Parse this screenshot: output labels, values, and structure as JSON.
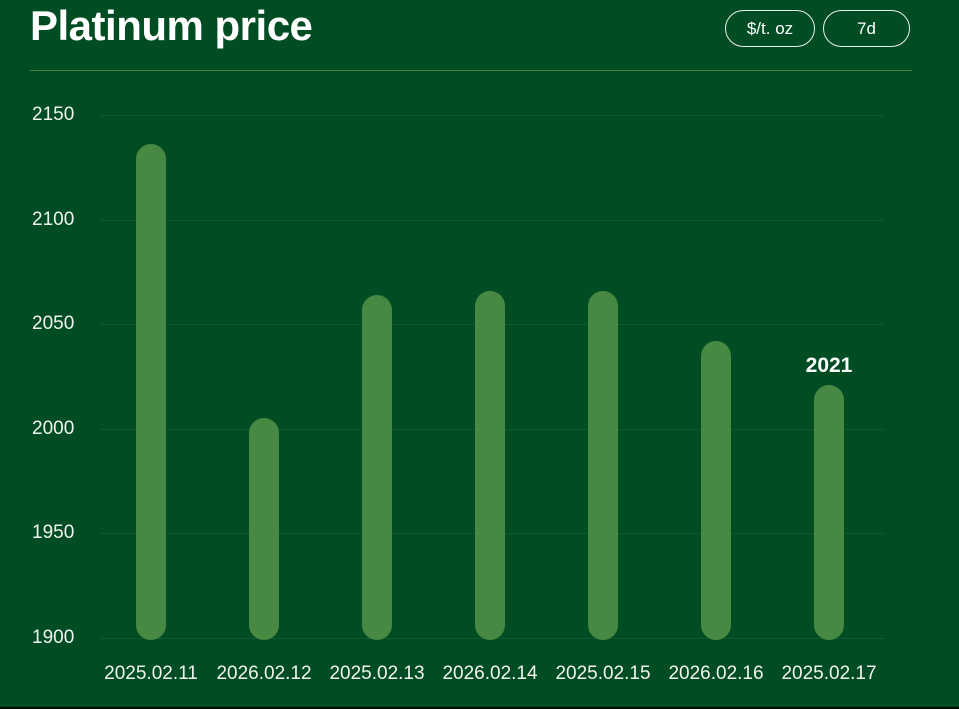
{
  "header": {
    "title": "Platinum price",
    "unit_button": "$/t. oz",
    "period_button": "7d"
  },
  "chart_data": {
    "type": "bar",
    "title": "Platinum price",
    "unit": "$/t. oz",
    "period": "7d",
    "categories": [
      "2025.02.11",
      "2026.02.12",
      "2025.02.13",
      "2026.02.14",
      "2025.02.15",
      "2026.02.16",
      "2025.02.17"
    ],
    "values": [
      2136,
      2005,
      2064,
      2066,
      2066,
      2042,
      2021
    ],
    "y_ticks": [
      2150,
      2100,
      2050,
      2000,
      1950,
      1900
    ],
    "ylim": [
      1900,
      2150
    ],
    "xlabel": "",
    "ylabel": "",
    "grid": "horizontal",
    "legend": "none",
    "annotation": {
      "text": "2021",
      "bar_index": 6
    },
    "colors": {
      "background": "#014d23",
      "bar": "#478943",
      "text": "#ffffff",
      "tick_text": "#f1f3ef",
      "gridline": "rgba(255,255,255,0.07)",
      "divider": "#4e7e43"
    }
  }
}
